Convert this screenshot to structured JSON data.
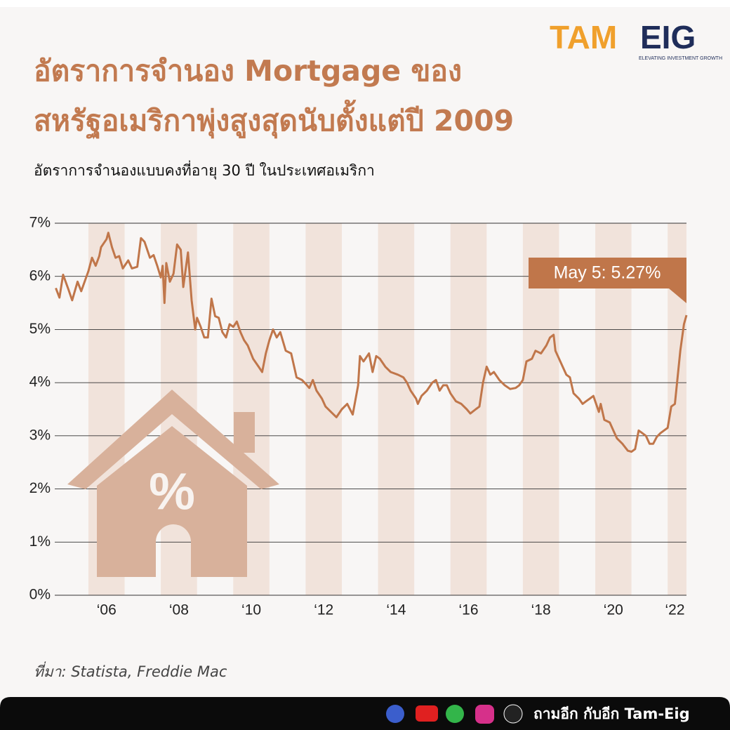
{
  "chart_data": {
    "type": "line",
    "title": [
      "อัตราการจำนอง Mortgage ของ",
      "สหรัฐอเมริกาพุ่งสูงสุดนับตั้งแต่ปี 2009"
    ],
    "subtitle": "อัตราการจำนองแบบคงที่อายุ 30 ปี ในประเทศอเมริกา",
    "source": "ที่มา: Statista, Freddie Mac",
    "annotation": "May 5: 5.27%",
    "icon_text": "%",
    "logo": [
      "TAM",
      "EIG"
    ],
    "logo_tagline": "ELEVATING INVESTMENT GROWTH",
    "footer": "ถามอีก กับอีก Tam-Eig",
    "color": "#c0764a",
    "band_color": "#f1e3db",
    "grid": true,
    "xlim": [
      2005.07,
      2022.52
    ],
    "ylim": [
      0,
      7
    ],
    "xticks": [
      {
        "value": 2006.5,
        "label": "‘06"
      },
      {
        "value": 2008.5,
        "label": "‘08"
      },
      {
        "value": 2010.5,
        "label": "‘10"
      },
      {
        "value": 2012.5,
        "label": "‘12"
      },
      {
        "value": 2014.5,
        "label": "‘14"
      },
      {
        "value": 2016.5,
        "label": "‘16"
      },
      {
        "value": 2018.5,
        "label": "‘18"
      },
      {
        "value": 2020.5,
        "label": "‘20"
      },
      {
        "value": 2022.2,
        "label": "‘22"
      }
    ],
    "yticks": [
      {
        "value": 0,
        "label": "0%"
      },
      {
        "value": 1,
        "label": "1%"
      },
      {
        "value": 2,
        "label": "2%"
      },
      {
        "value": 3,
        "label": "3%"
      },
      {
        "value": 4,
        "label": "4%"
      },
      {
        "value": 5,
        "label": "5%"
      },
      {
        "value": 6,
        "label": "6%"
      },
      {
        "value": 7,
        "label": "7%"
      }
    ],
    "x": [
      2005.1,
      2005.2,
      2005.3,
      2005.45,
      2005.55,
      2005.7,
      2005.8,
      2006.0,
      2006.1,
      2006.2,
      2006.3,
      2006.35,
      2006.5,
      2006.55,
      2006.65,
      2006.75,
      2006.85,
      2006.95,
      2007.1,
      2007.2,
      2007.35,
      2007.45,
      2007.55,
      2007.7,
      2007.8,
      2007.9,
      2008.0,
      2008.05,
      2008.1,
      2008.15,
      2008.25,
      2008.35,
      2008.45,
      2008.55,
      2008.62,
      2008.75,
      2008.85,
      2008.95,
      2009.0,
      2009.1,
      2009.2,
      2009.3,
      2009.4,
      2009.5,
      2009.6,
      2009.7,
      2009.8,
      2009.9,
      2010.0,
      2010.1,
      2010.2,
      2010.3,
      2010.4,
      2010.55,
      2010.7,
      2010.8,
      2010.9,
      2011.0,
      2011.1,
      2011.2,
      2011.3,
      2011.45,
      2011.6,
      2011.75,
      2011.9,
      2012.0,
      2012.1,
      2012.2,
      2012.3,
      2012.45,
      2012.55,
      2012.7,
      2012.85,
      2013.0,
      2013.15,
      2013.3,
      2013.45,
      2013.5,
      2013.6,
      2013.75,
      2013.85,
      2013.95,
      2014.05,
      2014.2,
      2014.35,
      2014.55,
      2014.7,
      2014.8,
      2014.9,
      2015.05,
      2015.1,
      2015.2,
      2015.35,
      2015.5,
      2015.6,
      2015.7,
      2015.8,
      2015.9,
      2016.0,
      2016.15,
      2016.3,
      2016.45,
      2016.55,
      2016.7,
      2016.8,
      2016.9,
      2017.0,
      2017.1,
      2017.2,
      2017.35,
      2017.5,
      2017.65,
      2017.8,
      2017.9,
      2018.0,
      2018.1,
      2018.25,
      2018.35,
      2018.5,
      2018.65,
      2018.75,
      2018.85,
      2018.9,
      2019.0,
      2019.1,
      2019.2,
      2019.3,
      2019.4,
      2019.55,
      2019.65,
      2019.75,
      2019.85,
      2019.95,
      2020.05,
      2020.1,
      2020.15,
      2020.25,
      2020.4,
      2020.5,
      2020.6,
      2020.75,
      2020.9,
      2021.0,
      2021.1,
      2021.2,
      2021.3,
      2021.4,
      2021.5,
      2021.6,
      2021.7,
      2021.8,
      2021.9,
      2022.0,
      2022.1,
      2022.2,
      2022.35,
      2022.45,
      2022.52
    ],
    "values": [
      5.78,
      5.6,
      6.03,
      5.75,
      5.55,
      5.9,
      5.72,
      6.1,
      6.35,
      6.2,
      6.38,
      6.55,
      6.7,
      6.82,
      6.55,
      6.35,
      6.38,
      6.15,
      6.3,
      6.15,
      6.18,
      6.72,
      6.65,
      6.35,
      6.4,
      6.2,
      5.98,
      6.2,
      5.5,
      6.25,
      5.9,
      6.05,
      6.6,
      6.5,
      5.8,
      6.45,
      5.55,
      5.0,
      5.22,
      5.05,
      4.85,
      4.85,
      5.58,
      5.25,
      5.22,
      4.95,
      4.85,
      5.1,
      5.05,
      5.15,
      4.95,
      4.8,
      4.7,
      4.45,
      4.3,
      4.2,
      4.55,
      4.8,
      5.0,
      4.85,
      4.95,
      4.6,
      4.55,
      4.1,
      4.05,
      3.98,
      3.9,
      4.05,
      3.85,
      3.7,
      3.55,
      3.45,
      3.35,
      3.5,
      3.6,
      3.4,
      3.95,
      4.5,
      4.4,
      4.55,
      4.2,
      4.5,
      4.45,
      4.3,
      4.2,
      4.15,
      4.1,
      4.0,
      3.85,
      3.7,
      3.6,
      3.75,
      3.85,
      4.0,
      4.05,
      3.85,
      3.95,
      3.95,
      3.8,
      3.65,
      3.6,
      3.5,
      3.42,
      3.5,
      3.55,
      4.0,
      4.3,
      4.15,
      4.2,
      4.05,
      3.95,
      3.88,
      3.9,
      3.95,
      4.05,
      4.4,
      4.45,
      4.6,
      4.55,
      4.7,
      4.85,
      4.9,
      4.6,
      4.45,
      4.3,
      4.15,
      4.1,
      3.8,
      3.7,
      3.6,
      3.65,
      3.7,
      3.75,
      3.55,
      3.45,
      3.6,
      3.3,
      3.25,
      3.1,
      2.95,
      2.85,
      2.72,
      2.7,
      2.75,
      3.1,
      3.05,
      3.0,
      2.85,
      2.85,
      2.98,
      3.05,
      3.1,
      3.15,
      3.55,
      3.6,
      4.6,
      5.1,
      5.27
    ]
  }
}
